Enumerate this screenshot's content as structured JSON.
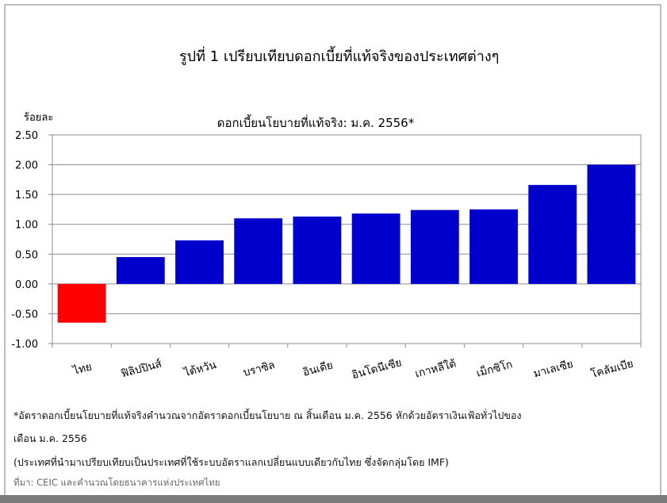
{
  "figure": {
    "title": "รูปที่ 1 เปรียบเทียบดอกเบี้ยที่แท้จริงของประเทศต่างๆ"
  },
  "chart_data": {
    "type": "bar",
    "title": "ดอกเบี้ยนโยบายที่แท้จริง: ม.ค. 2556*",
    "xlabel": "",
    "ylabel": "ร้อยละ",
    "ylim": [
      -1.0,
      2.5
    ],
    "yticks": [
      "2.50",
      "2.00",
      "1.50",
      "1.00",
      "0.50",
      "0.00",
      "-0.50",
      "-1.00"
    ],
    "grid": true,
    "legend": "none",
    "categories": [
      "ไทย",
      "ฟิลิปปินส์",
      "ไต้หวัน",
      "บราซิล",
      "อินเดีย",
      "อินโดนีเซีย",
      "เกาหลีใต้",
      "เม็กซิโก",
      "มาเลเซีย",
      "โคลัมเบีย"
    ],
    "values": [
      -0.65,
      0.45,
      0.73,
      1.1,
      1.13,
      1.18,
      1.24,
      1.25,
      1.66,
      2.0
    ],
    "colors": [
      "#ff0000",
      "#0000cc",
      "#0000cc",
      "#0000cc",
      "#0000cc",
      "#0000cc",
      "#0000cc",
      "#0000cc",
      "#0000cc",
      "#0000cc"
    ]
  },
  "notes": {
    "line1": "*อัตราดอกเบี้ยนโยบายที่แท้จริงคำนวณจากอัตราดอกเบี้ยนโยบาย ณ สิ้นเดือน ม.ค. 2556 หักด้วยอัตราเงินเฟ้อทั่วไปของ",
    "line2": "เดือน ม.ค. 2556",
    "line3": "(ประเทศที่นำมาเปรียบเทียบเป็นประเทศที่ใช้ระบบอัตราแลกเปลี่ยนแบบเดียวกับไทย ซึ่งจัดกลุ่มโดย IMF)",
    "source": "ที่มา: CEIC และคำนวณโดยธนาคารแห่งประเทศไทย"
  }
}
